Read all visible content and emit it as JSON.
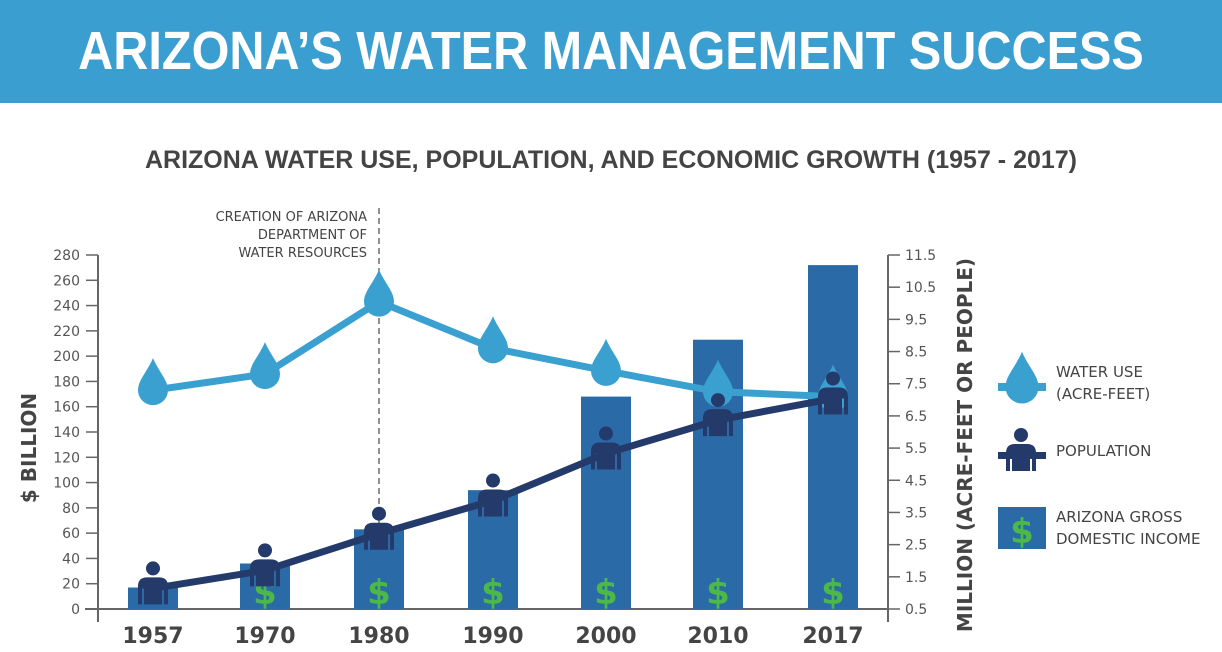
{
  "header": {
    "title": "ARIZONA’S WATER MANAGEMENT SUCCESS"
  },
  "chart_data": {
    "type": "bar+line",
    "title": "ARIZONA WATER USE, POPULATION, AND ECONOMIC GROWTH (1957 - 2017)",
    "categories": [
      "1957",
      "1970",
      "1980",
      "1990",
      "2000",
      "2010",
      "2017"
    ],
    "ylabel_left": "$ BILLION",
    "ylabel_right": "MILLION (ACRE-FEET OR PEOPLE)",
    "ylim_left": [
      0,
      280
    ],
    "yticks_left": [
      "0",
      "20",
      "40",
      "60",
      "80",
      "100",
      "120",
      "140",
      "160",
      "180",
      "200",
      "220",
      "240",
      "260",
      "280"
    ],
    "ylim_right": [
      0.5,
      11.5
    ],
    "yticks_right": [
      "0.5",
      "1.5",
      "2.5",
      "3.5",
      "4.5",
      "5.5",
      "6.5",
      "7.5",
      "8.5",
      "9.5",
      "10.5",
      "11.5"
    ],
    "series": [
      {
        "name": "ARIZONA GROSS DOMESTIC INCOME",
        "type": "bar",
        "axis": "left",
        "color": "#2a6aa6",
        "values": [
          17,
          36,
          63,
          94,
          168,
          213,
          272
        ]
      },
      {
        "name": "WATER USE (ACRE-FEET)",
        "type": "line",
        "axis": "right",
        "color": "#3aa0d0",
        "values": [
          7.3,
          7.8,
          10.05,
          8.6,
          7.9,
          7.25,
          7.1
        ]
      },
      {
        "name": "POPULATION",
        "type": "line",
        "axis": "right",
        "color": "#233a6b",
        "values": [
          1.14,
          1.7,
          2.84,
          3.87,
          5.33,
          6.37,
          7.04
        ]
      }
    ],
    "annotation": {
      "at": "1980",
      "lines": [
        "CREATION OF ARIZONA",
        "DEPARTMENT OF",
        "WATER RESOURCES"
      ]
    },
    "legend": {
      "position": "right",
      "items": [
        [
          "WATER USE",
          "(ACRE-FEET)"
        ],
        [
          "POPULATION"
        ],
        [
          "ARIZONA GROSS",
          "DOMESTIC INCOME"
        ]
      ]
    },
    "dollar_color": "#4cb848"
  }
}
